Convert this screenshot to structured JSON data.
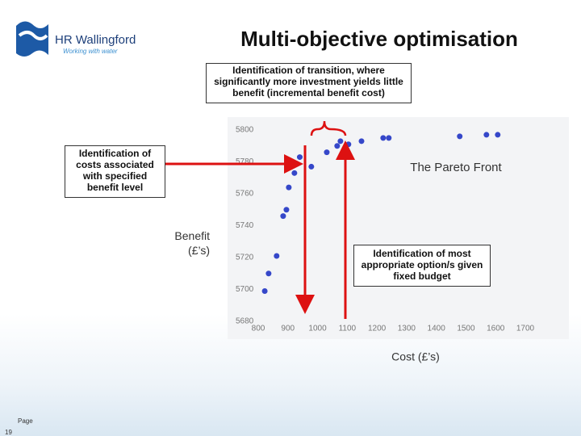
{
  "logo": {
    "name": "HR Wallingford",
    "tagline": "Working with water"
  },
  "footer": {
    "page_label": "Page",
    "page_number": "19"
  },
  "chart_data": {
    "type": "scatter",
    "title": "Multi-objective optimisation",
    "x_label": "Cost (£’s)",
    "y_label": "Benefit (£’s)",
    "annotations": [
      "Identification of transition, where significantly more investment yields little benefit (incremental benefit cost)",
      "Identification of costs associated with specified benefit level",
      "The Pareto Front",
      "Identification of most appropriate option/s given fixed budget"
    ],
    "x": [
      822,
      835,
      862,
      884,
      895,
      903,
      922,
      928,
      940,
      979,
      1031,
      1066,
      1077,
      1104,
      1148,
      1221,
      1240,
      1479,
      1569,
      1607
    ],
    "values": [
      5699,
      5710,
      5721,
      5746,
      5750,
      5764,
      5773,
      5779,
      5783,
      5777,
      5786,
      5790,
      5793,
      5791,
      5793,
      5795,
      5795,
      5796,
      5797,
      5797
    ],
    "color": "#3547c9",
    "xlim": [
      800,
      1700
    ],
    "xticks": [
      800,
      900,
      1000,
      1100,
      1200,
      1300,
      1400,
      1500,
      1600,
      1700
    ],
    "ylim": [
      5680,
      5800
    ],
    "yticks": [
      5680,
      5700,
      5720,
      5740,
      5760,
      5780,
      5800
    ],
    "grid": false
  }
}
